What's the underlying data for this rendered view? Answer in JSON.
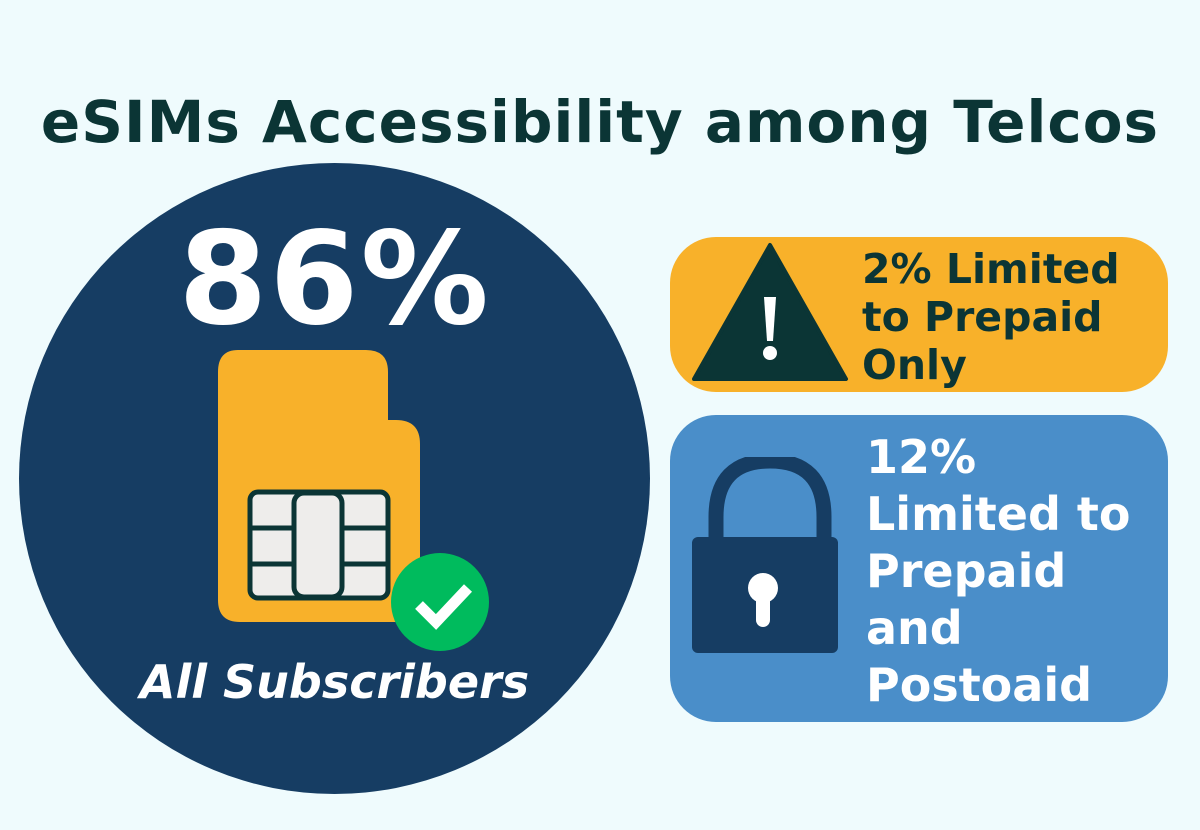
{
  "title": "eSIMs Accessibility among Telcos",
  "main_stat": {
    "value": "86%",
    "label": "All Subscribers",
    "icon": "sim-card-check-icon"
  },
  "cards": [
    {
      "lines": [
        "2% Limited",
        "to Prepaid",
        "Only"
      ],
      "icon": "warning-triangle-icon",
      "color": "#f8b12a"
    },
    {
      "lines": [
        "12%",
        "Limited to",
        "Prepaid",
        "and",
        "Postoaid"
      ],
      "icon": "padlock-icon",
      "color": "#4a8ec9"
    }
  ],
  "colors": {
    "background": "#effbfd",
    "navy": "#163d63",
    "dark": "#0b3535",
    "green": "#00bb5d"
  }
}
